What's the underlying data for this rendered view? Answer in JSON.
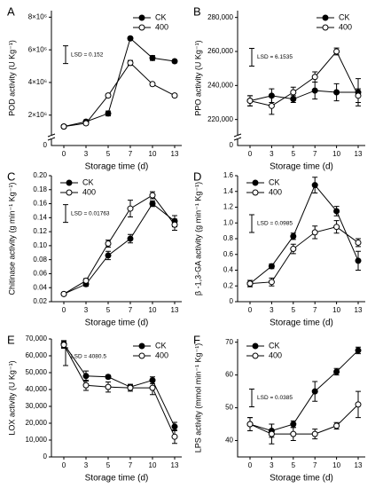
{
  "chart_data": [
    {
      "type": "line",
      "panel": "A",
      "ylabel": "POD activity (U Kg⁻¹)",
      "xlabel": "Storage time (d)",
      "categories": [
        "0",
        "3",
        "5",
        "7",
        "10",
        "13"
      ],
      "series": [
        {
          "name": "CK",
          "color": "#000000",
          "marker": "filled",
          "values": [
            1300000,
            1600000,
            2100000,
            6700000,
            5500000,
            5300000
          ],
          "errors": [
            100000,
            100000,
            150000,
            100000,
            150000,
            100000
          ]
        },
        {
          "name": "400",
          "color": "#000000",
          "marker": "open",
          "values": [
            1300000,
            1500000,
            3200000,
            5200000,
            3900000,
            3200000
          ],
          "errors": [
            100000,
            100000,
            100000,
            150000,
            100000,
            100000
          ]
        }
      ],
      "ylim": [
        900000,
        8400000
      ],
      "yticks": [
        {
          "value": 2000000,
          "label": "2×10⁶"
        },
        {
          "value": 4000000,
          "label": "4×10⁶"
        },
        {
          "value": 6000000,
          "label": "6×10⁶"
        },
        {
          "value": 8000000,
          "label": "8×10⁶"
        }
      ],
      "break_tick": "0",
      "annotation": "LSD = 0.152",
      "legend": "upper right"
    },
    {
      "type": "line",
      "panel": "B",
      "ylabel": "PPO activity (U Kg⁻¹)",
      "xlabel": "Storage time (d)",
      "categories": [
        "0",
        "3",
        "5",
        "7",
        "10",
        "13"
      ],
      "series": [
        {
          "name": "CK",
          "color": "#000000",
          "marker": "filled",
          "values": [
            231000,
            234000,
            232000,
            237000,
            236000,
            236000
          ],
          "errors": [
            3000,
            4000,
            2000,
            5000,
            5000,
            8000
          ]
        },
        {
          "name": "400",
          "color": "#000000",
          "marker": "open",
          "values": [
            231000,
            228000,
            236000,
            245000,
            260000,
            234000
          ],
          "errors": [
            3000,
            5000,
            3000,
            3000,
            2000,
            4000
          ]
        }
      ],
      "ylim": [
        212000,
        284000
      ],
      "yticks": [
        {
          "value": 220000,
          "label": "220,000"
        },
        {
          "value": 240000,
          "label": "240,000"
        },
        {
          "value": 260000,
          "label": "260,000"
        },
        {
          "value": 280000,
          "label": "280,000"
        }
      ],
      "break_tick": "0",
      "annotation": "LSD = 6.1535",
      "legend": "upper right"
    },
    {
      "type": "line",
      "panel": "C",
      "ylabel": "Chitinase activity (g min⁻¹ Kg⁻¹)",
      "xlabel": "Storage time (d)",
      "categories": [
        "0",
        "3",
        "5",
        "7",
        "10",
        "13"
      ],
      "series": [
        {
          "name": "CK",
          "color": "#000000",
          "marker": "filled",
          "values": [
            0.031,
            0.045,
            0.086,
            0.11,
            0.16,
            0.135
          ],
          "errors": [
            0.002,
            0.003,
            0.006,
            0.006,
            0.004,
            0.008
          ]
        },
        {
          "name": "400",
          "color": "#000000",
          "marker": "open",
          "values": [
            0.031,
            0.05,
            0.103,
            0.153,
            0.172,
            0.13
          ],
          "errors": [
            0.002,
            0.003,
            0.005,
            0.012,
            0.005,
            0.008
          ]
        }
      ],
      "ylim": [
        0.02,
        0.2
      ],
      "yticks": [
        0.02,
        0.04,
        0.06,
        0.08,
        {
          "value": 0.1,
          "label": "0.10"
        },
        0.12,
        0.14,
        0.16,
        0.18,
        {
          "value": 0.2,
          "label": "0.20"
        }
      ],
      "annotation": "LSD = 0.01763",
      "legend": "upper left"
    },
    {
      "type": "line",
      "panel": "D",
      "ylabel": "β -1,3-GA activity (g min⁻¹ Kg⁻¹)",
      "xlabel": "Storage time (d)",
      "categories": [
        "0",
        "3",
        "5",
        "7",
        "10",
        "13"
      ],
      "series": [
        {
          "name": "CK",
          "color": "#000000",
          "marker": "filled",
          "values": [
            0.23,
            0.45,
            0.83,
            1.48,
            1.15,
            0.52
          ],
          "errors": [
            0.04,
            0.03,
            0.04,
            0.1,
            0.06,
            0.12
          ]
        },
        {
          "name": "400",
          "color": "#000000",
          "marker": "open",
          "values": [
            0.23,
            0.25,
            0.67,
            0.88,
            0.95,
            0.75
          ],
          "errors": [
            0.04,
            0.05,
            0.06,
            0.08,
            0.08,
            0.05
          ]
        }
      ],
      "ylim": [
        0,
        1.6
      ],
      "yticks": [
        0,
        0.2,
        0.4,
        0.6,
        0.8,
        {
          "value": 1,
          "label": "1.0"
        },
        1.2,
        1.4,
        1.6
      ],
      "annotation": "LSD = 0.0985",
      "legend": "upper left"
    },
    {
      "type": "line",
      "panel": "E",
      "ylabel": "LOX activity (U Kg⁻¹)",
      "xlabel": "Storage time (d)",
      "categories": [
        "0",
        "3",
        "5",
        "7",
        "10",
        "13"
      ],
      "series": [
        {
          "name": "CK",
          "color": "#000000",
          "marker": "filled",
          "values": [
            67000,
            48000,
            47500,
            41500,
            45500,
            18000
          ],
          "errors": [
            2000,
            3000,
            1000,
            1500,
            2000,
            2500
          ]
        },
        {
          "name": "400",
          "color": "#000000",
          "marker": "open",
          "values": [
            66500,
            42500,
            41500,
            41000,
            41000,
            12000
          ],
          "errors": [
            2000,
            3000,
            3000,
            2000,
            4000,
            4000
          ]
        }
      ],
      "ylim": [
        0,
        70000
      ],
      "yticks": [
        0,
        {
          "value": 10000,
          "label": "10,000"
        },
        {
          "value": 20000,
          "label": "20,000"
        },
        {
          "value": 30000,
          "label": "30,000"
        },
        {
          "value": 40000,
          "label": "40,000"
        },
        {
          "value": 50000,
          "label": "50,000"
        },
        {
          "value": 60000,
          "label": "60,000"
        },
        {
          "value": 70000,
          "label": "70,000"
        }
      ],
      "annotation": "LSD = 4080.5",
      "legend": "upper right"
    },
    {
      "type": "line",
      "panel": "F",
      "ylabel": "LPS activity (mmol min⁻¹ Kg⁻¹)",
      "xlabel": "Storage time (d)",
      "categories": [
        "0",
        "3",
        "5",
        "7",
        "10",
        "13"
      ],
      "series": [
        {
          "name": "CK",
          "color": "#000000",
          "marker": "filled",
          "values": [
            45,
            43,
            45,
            55,
            61,
            67.5
          ],
          "errors": [
            2,
            2,
            1,
            3,
            1,
            1
          ]
        },
        {
          "name": "400",
          "color": "#000000",
          "marker": "open",
          "values": [
            45,
            42,
            42,
            42,
            44.5,
            51
          ],
          "errors": [
            2,
            3,
            2,
            1.5,
            1,
            4
          ]
        }
      ],
      "ylim": [
        35,
        71
      ],
      "yticks": [
        40,
        50,
        60,
        70
      ],
      "annotation": "LSD = 0.0385",
      "legend": "upper left"
    }
  ]
}
